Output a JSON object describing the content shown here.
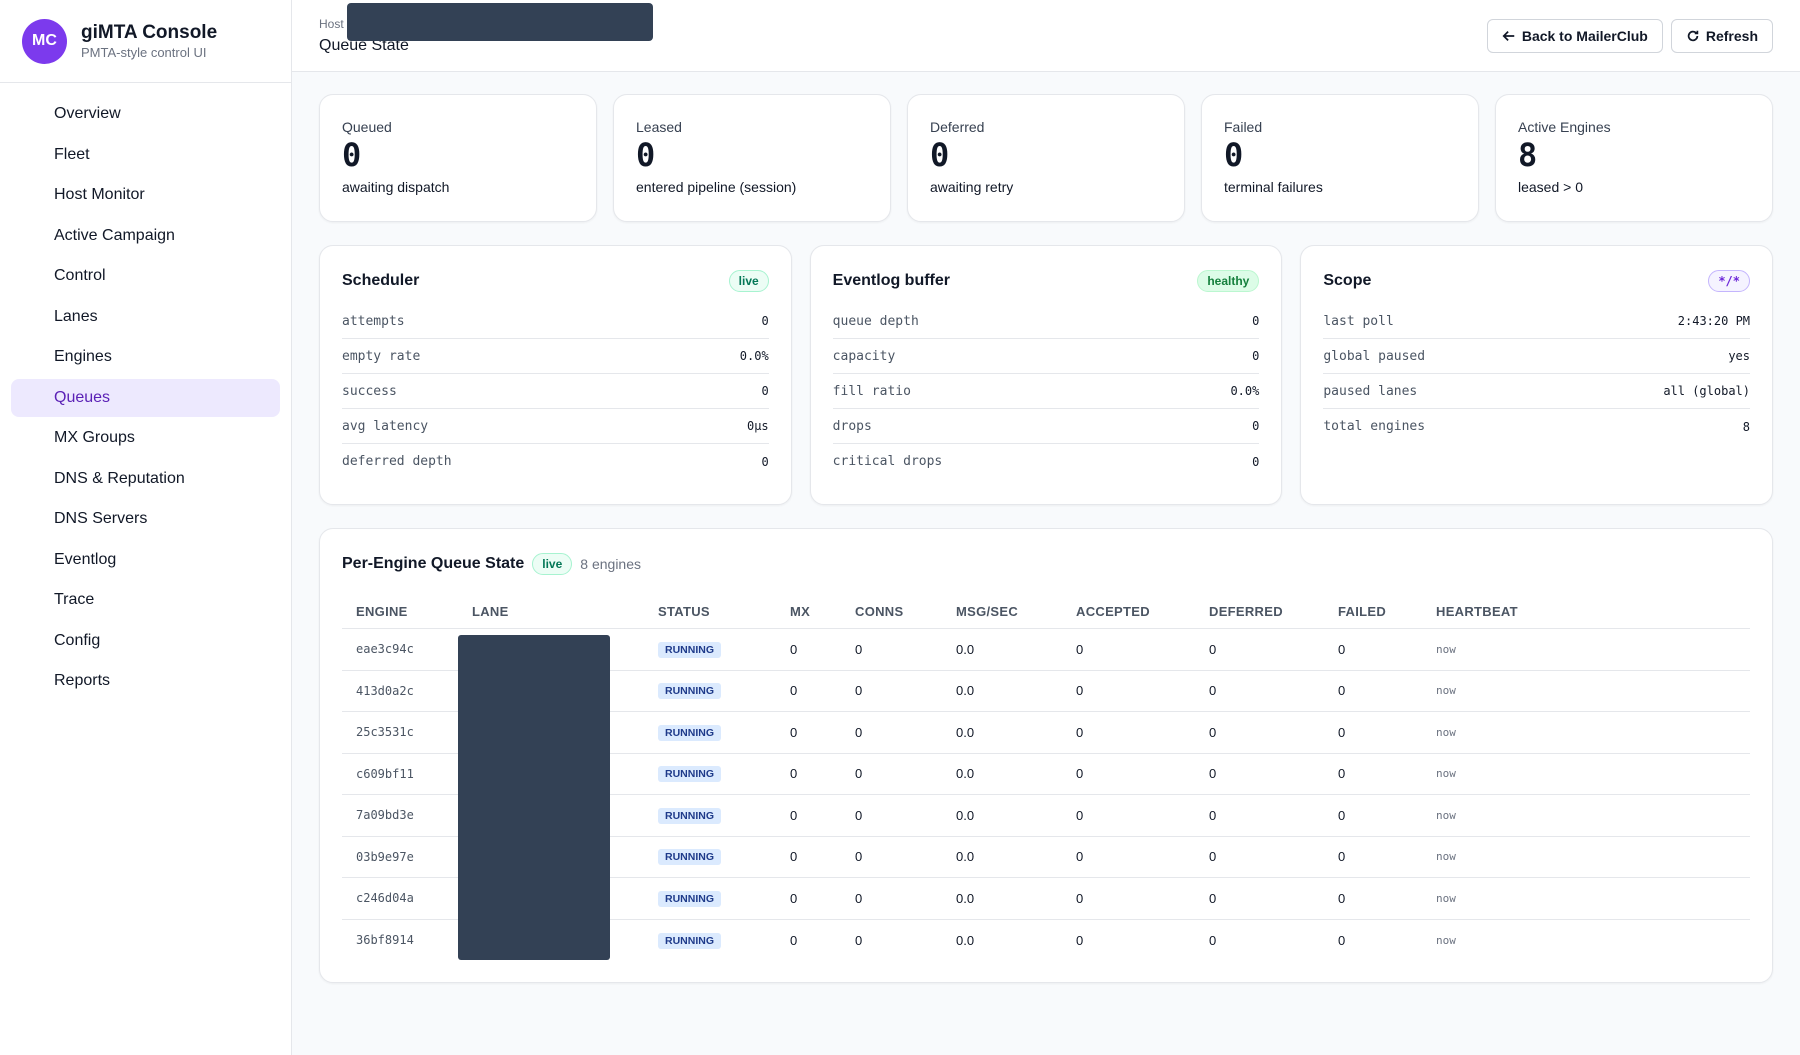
{
  "brand": {
    "initials": "MC",
    "title": "giMTA Console",
    "subtitle": "PMTA-style control UI"
  },
  "nav": [
    {
      "label": "Overview",
      "icon": "home-icon"
    },
    {
      "label": "Fleet",
      "icon": "layers-icon"
    },
    {
      "label": "Host Monitor",
      "icon": "server-icon"
    },
    {
      "label": "Active Campaign",
      "icon": "bolt-icon"
    },
    {
      "label": "Control",
      "icon": "pause-circle-icon"
    },
    {
      "label": "Lanes",
      "icon": "network-icon"
    },
    {
      "label": "Engines",
      "icon": "chip-icon"
    },
    {
      "label": "Queues",
      "icon": "list-icon",
      "active": true
    },
    {
      "label": "MX Groups",
      "icon": "share-icon"
    },
    {
      "label": "DNS & Reputation",
      "icon": "shield-icon"
    },
    {
      "label": "DNS Servers",
      "icon": "globe-icon"
    },
    {
      "label": "Eventlog",
      "icon": "scroll-icon"
    },
    {
      "label": "Trace",
      "icon": "search-icon"
    },
    {
      "label": "Config",
      "icon": "sliders-icon"
    },
    {
      "label": "Reports",
      "icon": "file-icon"
    }
  ],
  "header": {
    "breadcrumb": "Host",
    "title": "Queue State",
    "back_label": "Back to MailerClub",
    "refresh_label": "Refresh"
  },
  "stats": [
    {
      "label": "Queued",
      "icon": "list-check-icon",
      "value": "0",
      "sub": "awaiting dispatch"
    },
    {
      "label": "Leased",
      "icon": "arrows-swap-icon",
      "value": "0",
      "sub": "entered pipeline (session)"
    },
    {
      "label": "Deferred",
      "icon": "history-icon",
      "value": "0",
      "sub": "awaiting retry"
    },
    {
      "label": "Failed",
      "icon": "x-circle-icon",
      "value": "0",
      "sub": "terminal failures"
    },
    {
      "label": "Active Engines",
      "icon": "chip-icon",
      "value": "8",
      "sub": "leased > 0"
    }
  ],
  "scheduler": {
    "title": "Scheduler",
    "badge": "live",
    "rows": [
      {
        "k": "attempts",
        "v": "0"
      },
      {
        "k": "empty rate",
        "v": "0.0%"
      },
      {
        "k": "success",
        "v": "0"
      },
      {
        "k": "avg latency",
        "v": "0µs"
      },
      {
        "k": "deferred depth",
        "v": "0"
      }
    ]
  },
  "eventlog": {
    "title": "Eventlog buffer",
    "badge": "healthy",
    "rows": [
      {
        "k": "queue depth",
        "v": "0"
      },
      {
        "k": "capacity",
        "v": "0"
      },
      {
        "k": "fill ratio",
        "v": "0.0%"
      },
      {
        "k": "drops",
        "v": "0"
      },
      {
        "k": "critical drops",
        "v": "0"
      }
    ]
  },
  "scope": {
    "title": "Scope",
    "badge": "*/*",
    "rows": [
      {
        "k": "last poll",
        "v": "2:43:20 PM"
      },
      {
        "k": "global paused",
        "v": "yes"
      },
      {
        "k": "paused lanes",
        "v": "all (global)"
      },
      {
        "k": "total engines",
        "v": "8"
      }
    ]
  },
  "engines_table": {
    "title": "Per-Engine Queue State",
    "badge": "live",
    "count": "8 engines",
    "columns": [
      "ENGINE",
      "LANE",
      "STATUS",
      "MX",
      "CONNS",
      "MSG/SEC",
      "ACCEPTED",
      "DEFERRED",
      "FAILED",
      "HEARTBEAT"
    ],
    "rows": [
      {
        "engine": "eae3c94c",
        "status": "RUNNING",
        "mx": "0",
        "conns": "0",
        "msgsec": "0.0",
        "accepted": "0",
        "deferred": "0",
        "failed": "0",
        "heartbeat": "now"
      },
      {
        "engine": "413d0a2c",
        "status": "RUNNING",
        "mx": "0",
        "conns": "0",
        "msgsec": "0.0",
        "accepted": "0",
        "deferred": "0",
        "failed": "0",
        "heartbeat": "now"
      },
      {
        "engine": "25c3531c",
        "status": "RUNNING",
        "mx": "0",
        "conns": "0",
        "msgsec": "0.0",
        "accepted": "0",
        "deferred": "0",
        "failed": "0",
        "heartbeat": "now"
      },
      {
        "engine": "c609bf11",
        "status": "RUNNING",
        "mx": "0",
        "conns": "0",
        "msgsec": "0.0",
        "accepted": "0",
        "deferred": "0",
        "failed": "0",
        "heartbeat": "now"
      },
      {
        "engine": "7a09bd3e",
        "status": "RUNNING",
        "mx": "0",
        "conns": "0",
        "msgsec": "0.0",
        "accepted": "0",
        "deferred": "0",
        "failed": "0",
        "heartbeat": "now"
      },
      {
        "engine": "03b9e97e",
        "status": "RUNNING",
        "mx": "0",
        "conns": "0",
        "msgsec": "0.0",
        "accepted": "0",
        "deferred": "0",
        "failed": "0",
        "heartbeat": "now"
      },
      {
        "engine": "c246d04a",
        "status": "RUNNING",
        "mx": "0",
        "conns": "0",
        "msgsec": "0.0",
        "accepted": "0",
        "deferred": "0",
        "failed": "0",
        "heartbeat": "now"
      },
      {
        "engine": "36bf8914",
        "status": "RUNNING",
        "mx": "0",
        "conns": "0",
        "msgsec": "0.0",
        "accepted": "0",
        "deferred": "0",
        "failed": "0",
        "heartbeat": "now"
      }
    ]
  }
}
